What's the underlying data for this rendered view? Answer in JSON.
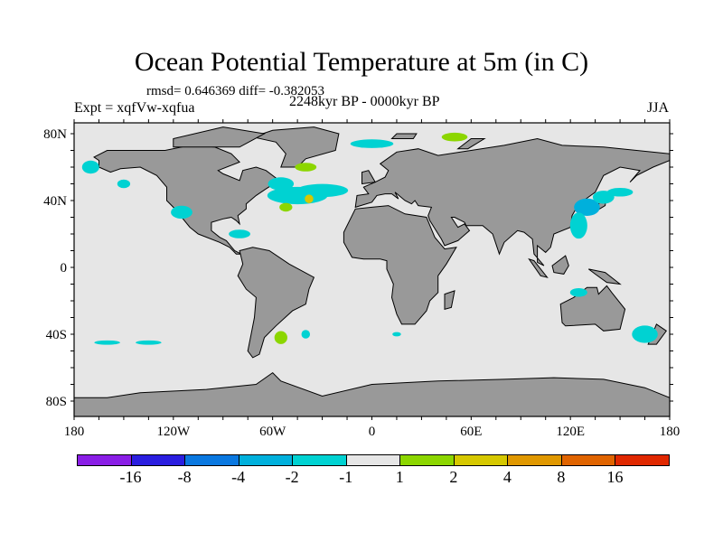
{
  "title": "Ocean Potential Temperature at 5m (in C)",
  "stats": "rmsd= 0.646369 diff= -0.382053",
  "experiment": "Expt = xqfVw-xqfua",
  "period": "2248kyr BP - 0000kyr BP",
  "season": "JJA",
  "axes": {
    "x_ticks": [
      "180",
      "120W",
      "60W",
      "0",
      "60E",
      "120E",
      "180"
    ],
    "x_tick_lons": [
      -180,
      -120,
      -60,
      0,
      60,
      120,
      180
    ],
    "y_ticks": [
      "80N",
      "40N",
      "0",
      "40S",
      "80S"
    ],
    "y_tick_lats": [
      80,
      40,
      0,
      -40,
      -80
    ]
  },
  "colors": {
    "ocean": "#e6e6e6",
    "land": "#999999"
  },
  "colorbar": {
    "levels": [
      "-16",
      "-8",
      "-4",
      "-2",
      "-1",
      "1",
      "2",
      "4",
      "8",
      "16"
    ],
    "colors": [
      "#8a1ee6",
      "#2b1ee0",
      "#0a78e0",
      "#00b0dc",
      "#00d2d2",
      "#e6e6e6",
      "#8cd600",
      "#d6c800",
      "#e09800",
      "#e06400",
      "#e02800"
    ]
  }
}
